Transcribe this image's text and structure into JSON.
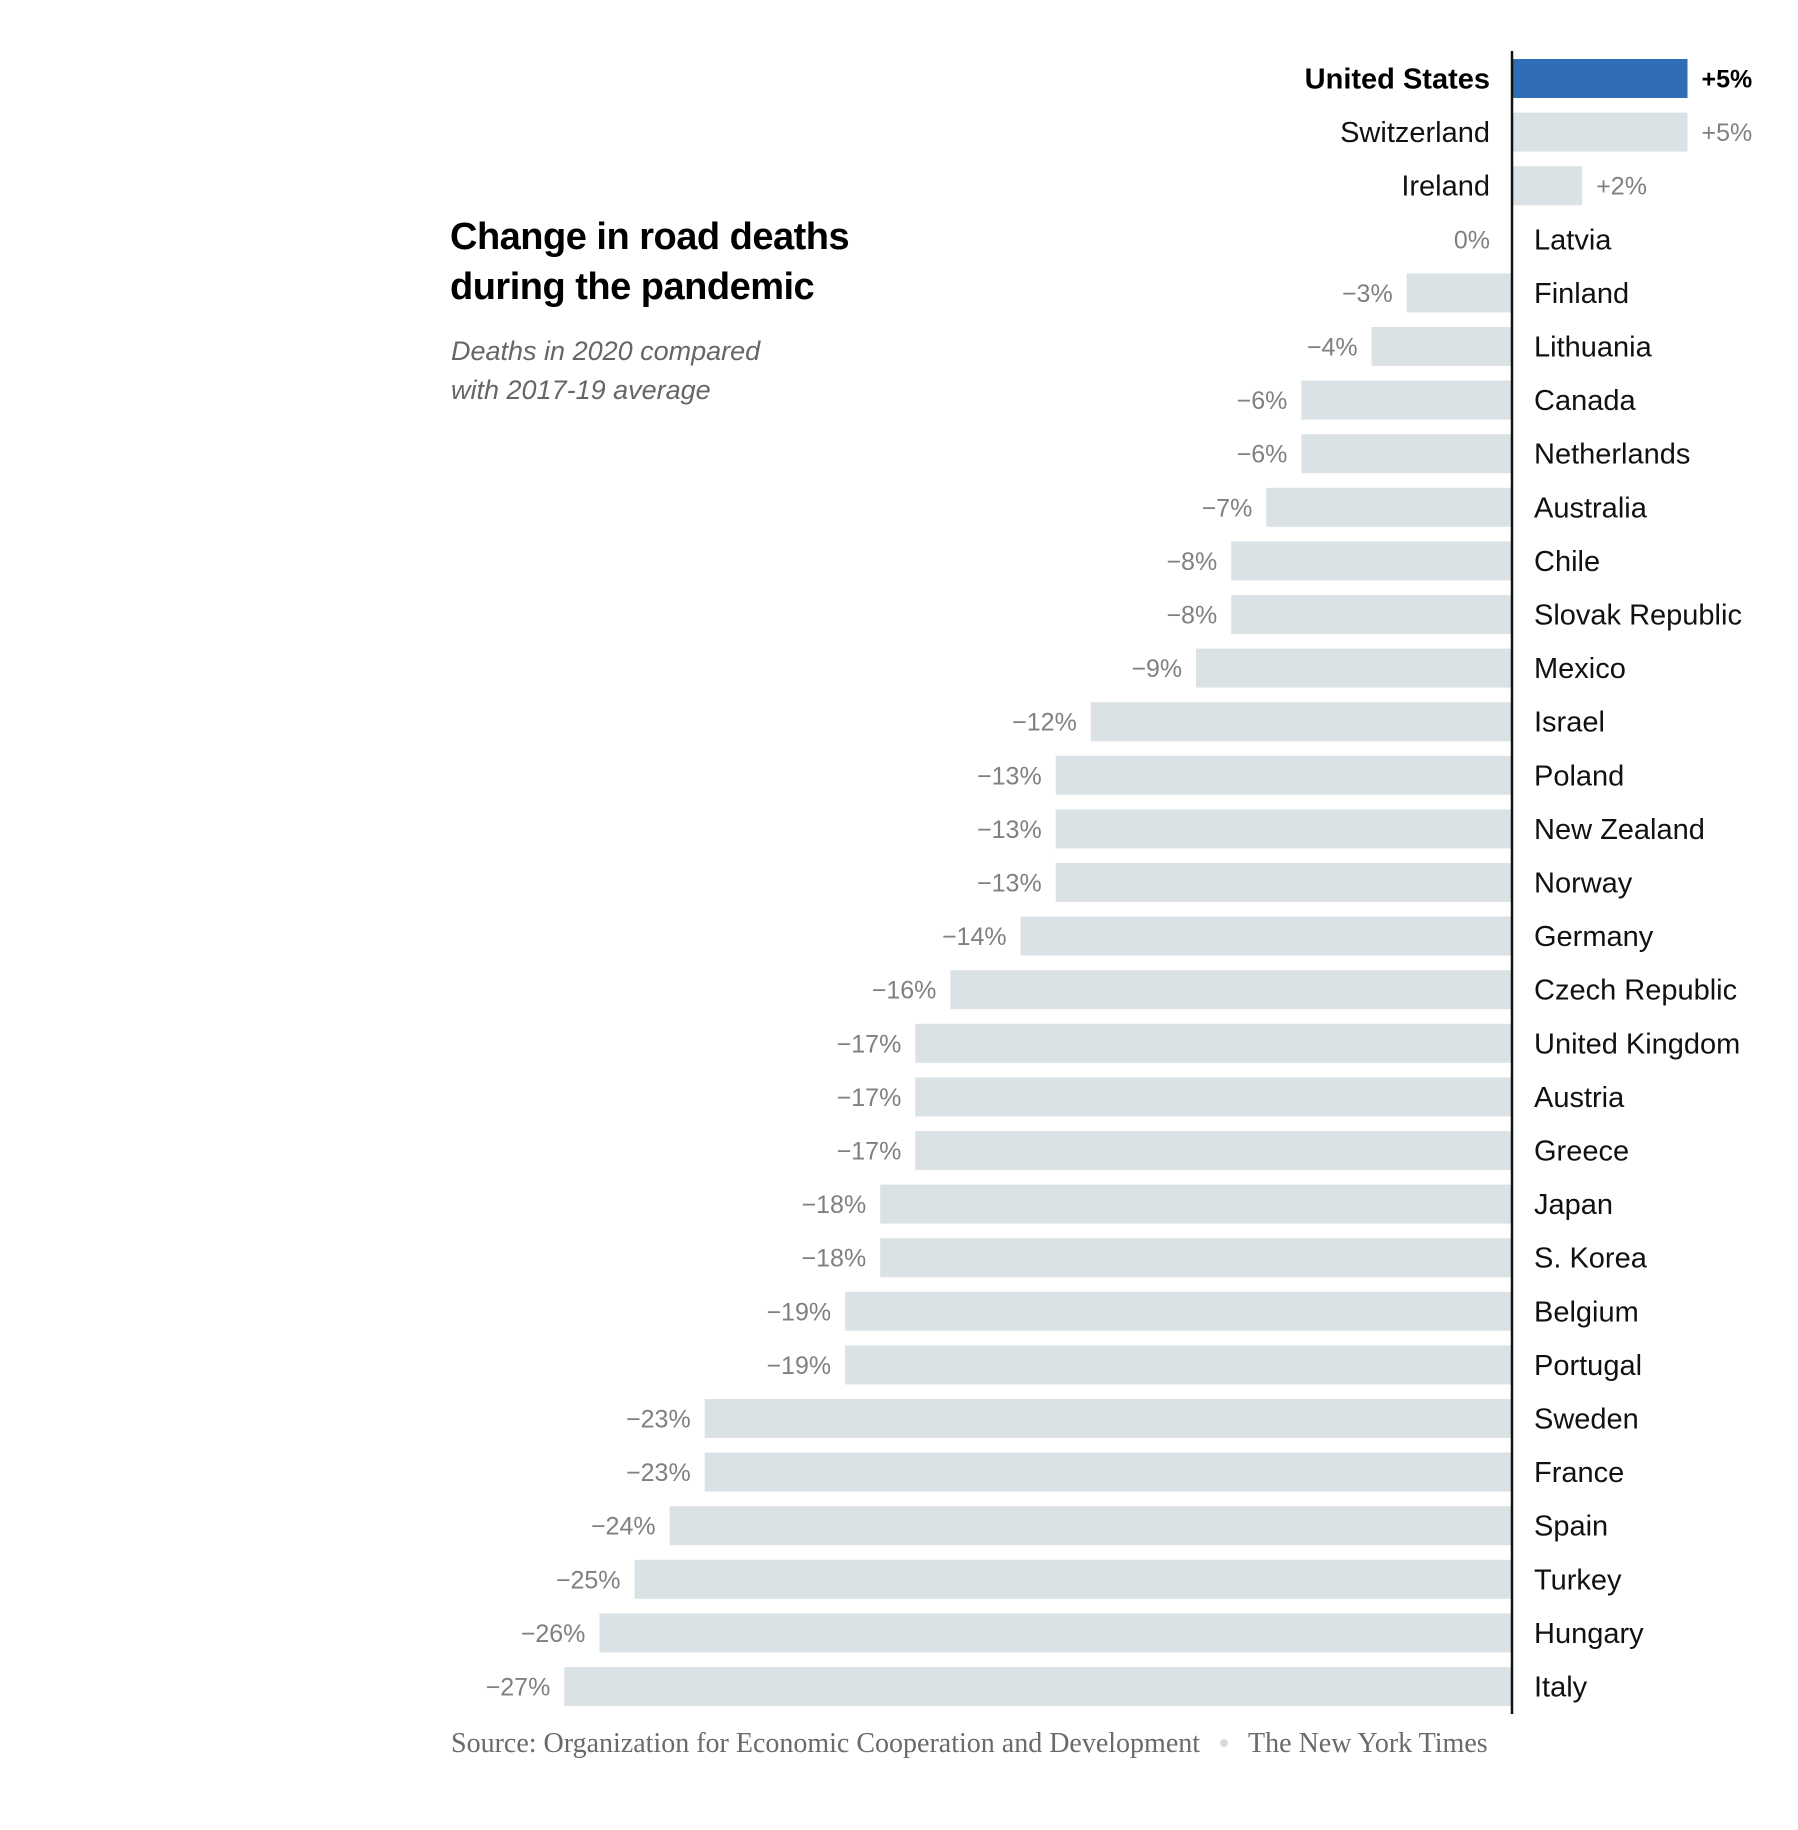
{
  "title": "Change in road deaths during the pandemic",
  "title_lines": [
    "Change in road deaths",
    "during the pandemic"
  ],
  "subtitle": "Deaths in 2020 compared with 2017-19 average",
  "subtitle_lines": [
    "Deaths in 2020 compared",
    "with 2017-19 average"
  ],
  "source": {
    "text": "Source: Organization for Economic Cooperation and Development",
    "credit": "The New York Times"
  },
  "colors": {
    "highlight": "#2f6eb4",
    "bar": "#dae2e5",
    "axis": "#111111",
    "value_label": "#808080",
    "country_label": "#111111"
  },
  "chart_data": {
    "type": "bar",
    "orientation": "horizontal",
    "title": "Change in road deaths during the pandemic",
    "subtitle": "Deaths in 2020 compared with 2017-19 average",
    "xlabel": "",
    "ylabel": "",
    "unit": "%",
    "xlim": [
      -27,
      5
    ],
    "grid": false,
    "highlight": "United States",
    "categories": [
      "United States",
      "Switzerland",
      "Ireland",
      "Latvia",
      "Finland",
      "Lithuania",
      "Canada",
      "Netherlands",
      "Australia",
      "Chile",
      "Slovak Republic",
      "Mexico",
      "Israel",
      "Poland",
      "New Zealand",
      "Norway",
      "Germany",
      "Czech Republic",
      "United Kingdom",
      "Austria",
      "Greece",
      "Japan",
      "S. Korea",
      "Belgium",
      "Portugal",
      "Sweden",
      "France",
      "Spain",
      "Turkey",
      "Hungary",
      "Italy"
    ],
    "values": [
      5,
      5,
      2,
      0,
      -3,
      -4,
      -6,
      -6,
      -7,
      -8,
      -8,
      -9,
      -12,
      -13,
      -13,
      -13,
      -14,
      -16,
      -17,
      -17,
      -17,
      -18,
      -18,
      -19,
      -19,
      -23,
      -23,
      -24,
      -25,
      -26,
      -27
    ],
    "labels": [
      "+5%",
      "+5%",
      "+2%",
      "0%",
      "−3%",
      "−4%",
      "−6%",
      "−6%",
      "−7%",
      "−8%",
      "−8%",
      "−9%",
      "−12%",
      "−13%",
      "−13%",
      "−13%",
      "−14%",
      "−16%",
      "−17%",
      "−17%",
      "−17%",
      "−18%",
      "−18%",
      "−19%",
      "−19%",
      "−23%",
      "−23%",
      "−24%",
      "−25%",
      "−26%",
      "−27%"
    ]
  }
}
